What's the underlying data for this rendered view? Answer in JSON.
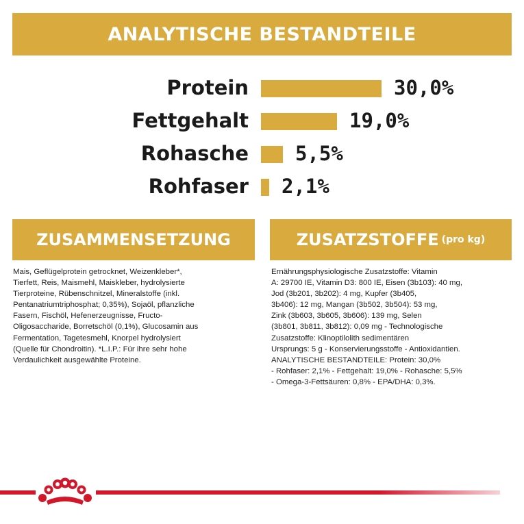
{
  "header": {
    "title": "ANALYTISCHE BESTANDTEILE"
  },
  "chart_data": {
    "type": "bar",
    "orientation": "horizontal",
    "categories": [
      "Protein",
      "Fettgehalt",
      "Rohasche",
      "Rohfaser"
    ],
    "values": [
      30.0,
      19.0,
      5.5,
      2.1
    ],
    "value_labels": [
      "30,0%",
      "19,0%",
      "5,5%",
      "2,1%"
    ],
    "unit": "%",
    "bar_color": "#d9ab3f",
    "grid": false
  },
  "composition": {
    "title": "ZUSAMMENSETZUNG",
    "text": "Mais, Geflügelprotein getrocknet, Weizenkleber*,\nTierfett, Reis, Maismehl, Maiskleber, hydrolysierte\nTierproteine, Rübenschnitzel, Mineralstoffe (inkl.\nPentanatriumtriphosphat; 0,35%), Sojaöl, pflanzliche\nFasern, Fischöl, Hefenerzeugnisse, Fructo-\nOligosaccharide, Borretschöl (0,1%), Glucosamin aus\nFermentation, Tagetesmehl, Knorpel hydrolysiert\n(Quelle für Chondroitin). *L.I.P.: Für ihre sehr hohe\nVerdaulichkeit ausgewählte Proteine."
  },
  "additives": {
    "title": "ZUSATZSTOFFE",
    "subtitle": "(pro kg)",
    "text": "Ernährungsphysiologische Zusatzstoffe: Vitamin\nA: 29700 IE, Vitamin D3: 800 IE, Eisen (3b103): 40 mg,\nJod (3b201, 3b202): 4 mg, Kupfer (3b405,\n3b406): 12 mg, Mangan (3b502, 3b504): 53 mg,\nZink (3b603, 3b605, 3b606): 139 mg, Selen\n(3b801, 3b811, 3b812): 0,09 mg - Technologische\nZusatzstoffe: Klinoptilolith sedimentären\nUrsprungs: 5 g - Konservierungsstoffe - Antioxidantien.\nANALYTISCHE BESTANDTEILE: Protein: 30,0%\n- Rohfaser: 2,1% - Fettgehalt: 19,0% - Rohasche: 5,5%\n- Omega-3-Fettsäuren: 0,8% - EPA/DHA: 0,3%."
  },
  "brand": {
    "logo": "royal-canin-crown-logo",
    "accent_color": "#d2172b"
  }
}
